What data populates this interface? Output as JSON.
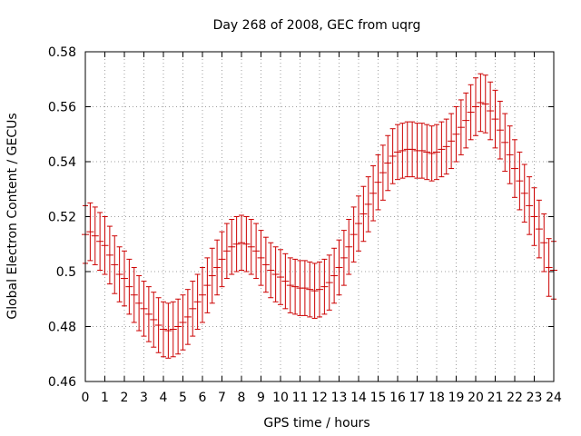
{
  "chart_data": {
    "type": "scatter",
    "title": "Day 268 of 2008, GEC from uqrg",
    "xlabel": "GPS time / hours",
    "ylabel": "Global Electron Content / GECUs",
    "xlim": [
      0,
      24
    ],
    "ylim": [
      0.46,
      0.58
    ],
    "x_ticks": [
      "0",
      "1",
      "2",
      "3",
      "4",
      "5",
      "6",
      "7",
      "8",
      "9",
      "10",
      "11",
      "12",
      "13",
      "14",
      "15",
      "16",
      "17",
      "18",
      "19",
      "20",
      "21",
      "22",
      "23",
      "24"
    ],
    "y_ticks": [
      "0.46",
      "0.48",
      "0.5",
      "0.52",
      "0.54",
      "0.56",
      "0.58"
    ],
    "grid": true,
    "error_bar_color": "#cc0000",
    "series": [
      {
        "x": [
          0,
          0.25,
          0.5,
          0.75,
          1,
          1.25,
          1.5,
          1.75,
          2,
          2.25,
          2.5,
          2.75,
          3,
          3.25,
          3.5,
          3.75,
          4,
          4.25,
          4.5,
          4.75,
          5,
          5.25,
          5.5,
          5.75,
          6,
          6.25,
          6.5,
          6.75,
          7,
          7.25,
          7.5,
          7.75,
          8,
          8.25,
          8.5,
          8.75,
          9,
          9.25,
          9.5,
          9.75,
          10,
          10.25,
          10.5,
          10.75,
          11,
          11.25,
          11.5,
          11.75,
          12,
          12.25,
          12.5,
          12.75,
          13,
          13.25,
          13.5,
          13.75,
          14,
          14.25,
          14.5,
          14.75,
          15,
          15.25,
          15.5,
          15.75,
          16,
          16.25,
          16.5,
          16.75,
          17,
          17.25,
          17.5,
          17.75,
          18,
          18.25,
          18.5,
          18.75,
          19,
          19.25,
          19.5,
          19.75,
          20,
          20.25,
          20.5,
          20.75,
          21,
          21.25,
          21.5,
          21.75,
          22,
          22.25,
          22.5,
          22.75,
          23,
          23.25,
          23.5,
          23.75,
          24
        ],
        "y": [
          0.5135,
          0.5145,
          0.513,
          0.511,
          0.5095,
          0.506,
          0.5025,
          0.499,
          0.4975,
          0.4945,
          0.4915,
          0.4885,
          0.4865,
          0.4845,
          0.4825,
          0.4805,
          0.479,
          0.4785,
          0.479,
          0.48,
          0.4815,
          0.4835,
          0.4865,
          0.489,
          0.4915,
          0.495,
          0.4985,
          0.5015,
          0.5045,
          0.5075,
          0.509,
          0.51,
          0.5105,
          0.51,
          0.509,
          0.5075,
          0.505,
          0.5025,
          0.5005,
          0.499,
          0.498,
          0.4965,
          0.495,
          0.4945,
          0.494,
          0.494,
          0.4935,
          0.493,
          0.4935,
          0.4945,
          0.496,
          0.4985,
          0.5015,
          0.505,
          0.509,
          0.5135,
          0.5175,
          0.521,
          0.5245,
          0.5285,
          0.5325,
          0.536,
          0.5395,
          0.542,
          0.5435,
          0.544,
          0.5445,
          0.5445,
          0.544,
          0.544,
          0.5435,
          0.543,
          0.5435,
          0.5445,
          0.5455,
          0.5475,
          0.55,
          0.5525,
          0.555,
          0.558,
          0.56,
          0.5615,
          0.561,
          0.5585,
          0.5555,
          0.5515,
          0.547,
          0.5425,
          0.5375,
          0.533,
          0.5285,
          0.524,
          0.52,
          0.5155,
          0.5105,
          0.5015,
          0.5005
        ],
        "error": [
          0.0105,
          0.0105,
          0.0105,
          0.0105,
          0.0105,
          0.0105,
          0.0105,
          0.01,
          0.01,
          0.01,
          0.01,
          0.01,
          0.01,
          0.01,
          0.01,
          0.01,
          0.01,
          0.01,
          0.01,
          0.01,
          0.01,
          0.01,
          0.01,
          0.01,
          0.01,
          0.01,
          0.01,
          0.01,
          0.01,
          0.01,
          0.01,
          0.01,
          0.01,
          0.01,
          0.01,
          0.01,
          0.01,
          0.01,
          0.01,
          0.01,
          0.01,
          0.01,
          0.01,
          0.01,
          0.01,
          0.01,
          0.01,
          0.01,
          0.01,
          0.01,
          0.01,
          0.01,
          0.01,
          0.01,
          0.01,
          0.01,
          0.01,
          0.01,
          0.01,
          0.01,
          0.01,
          0.01,
          0.01,
          0.01,
          0.01,
          0.01,
          0.01,
          0.01,
          0.01,
          0.01,
          0.01,
          0.01,
          0.01,
          0.01,
          0.01,
          0.01,
          0.01,
          0.01,
          0.01,
          0.01,
          0.0105,
          0.0105,
          0.0105,
          0.0105,
          0.0105,
          0.0105,
          0.0105,
          0.0105,
          0.0105,
          0.0105,
          0.0105,
          0.0105,
          0.0105,
          0.0105,
          0.0105,
          0.0105,
          0.0105
        ]
      }
    ]
  }
}
